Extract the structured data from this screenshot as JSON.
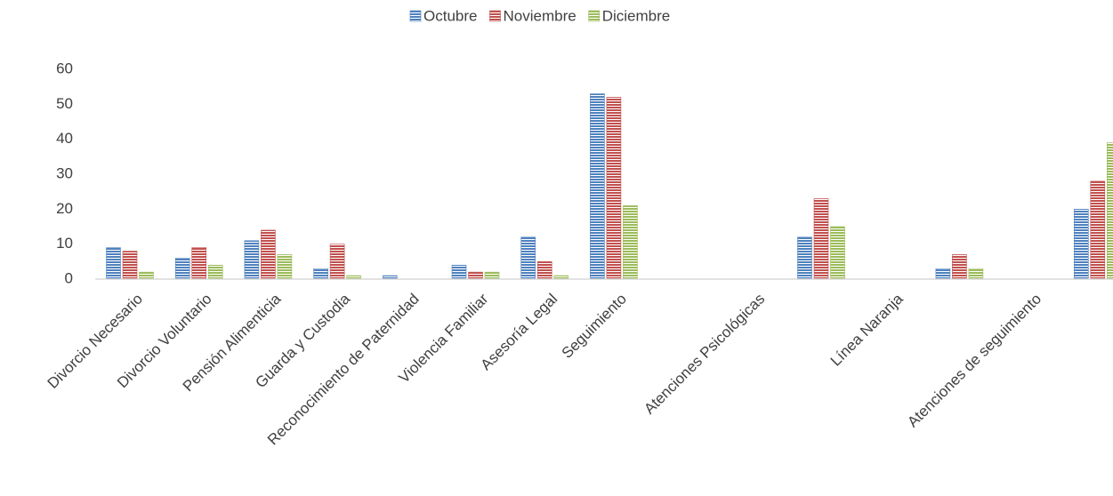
{
  "chart_data": {
    "type": "bar",
    "categories": [
      "Divorcio Necesario",
      "Divorcio Voluntario",
      "Pensión Alimenticia",
      "Guarda y Custodia",
      "Reconocimiento de Paternidad",
      "Violencia Familiar",
      "Asesoría Legal",
      "Seguimiento",
      null,
      "Atenciones Psicológicas",
      null,
      "Línea Naranja",
      null,
      "Atenciones de seguimiento",
      null
    ],
    "series": [
      {
        "name": "Octubre",
        "color": "#4f81bd",
        "values": [
          9,
          6,
          11,
          3,
          1,
          4,
          12,
          53,
          null,
          null,
          12,
          null,
          3,
          null,
          20
        ]
      },
      {
        "name": "Noviembre",
        "color": "#c0504d",
        "values": [
          8,
          9,
          14,
          10,
          0,
          2,
          5,
          52,
          null,
          null,
          23,
          null,
          7,
          null,
          28
        ]
      },
      {
        "name": "Diciembre",
        "color": "#9bbb59",
        "values": [
          2,
          4,
          7,
          1,
          0,
          2,
          1,
          21,
          null,
          null,
          15,
          null,
          3,
          null,
          39
        ]
      }
    ],
    "ylim": [
      0,
      60
    ],
    "yticks": [
      0,
      10,
      20,
      30,
      40,
      50,
      60
    ],
    "grid": false,
    "legend": "top"
  }
}
